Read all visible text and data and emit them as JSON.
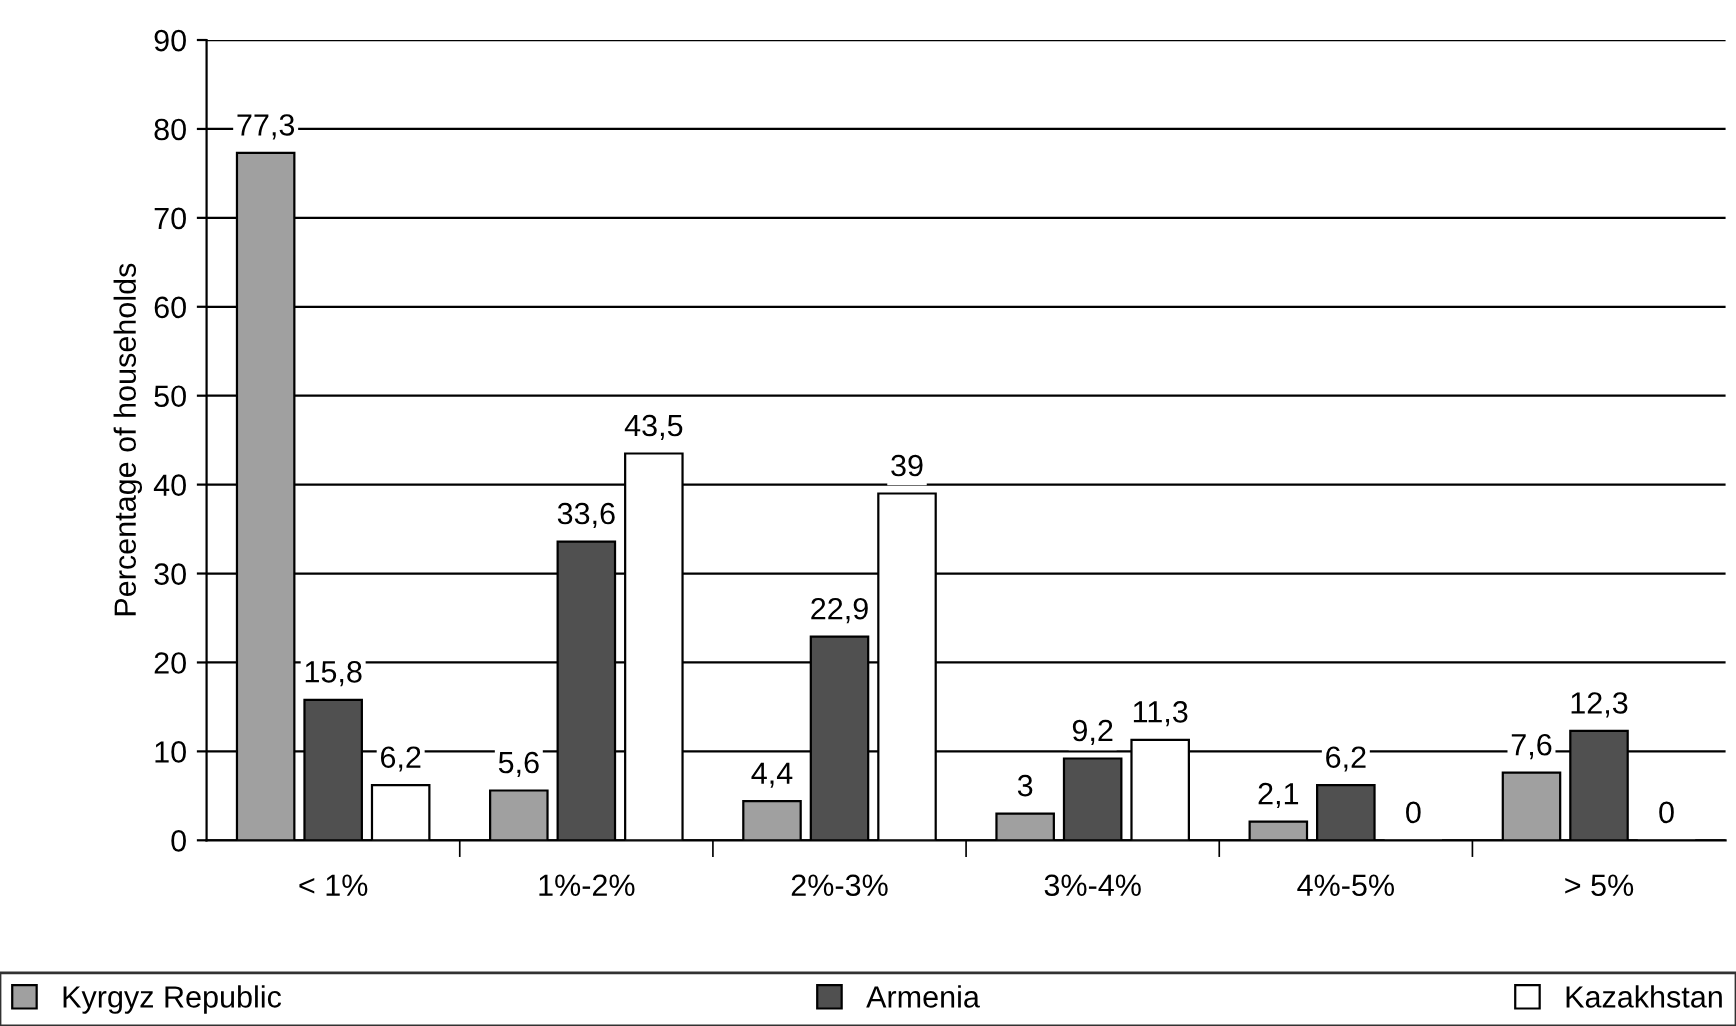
{
  "chart_data": {
    "type": "bar",
    "ylabel": "Percentage of households",
    "categories": [
      "< 1%",
      "1%-2%",
      "2%-3%",
      "3%-4%",
      "4%-5%",
      "> 5%"
    ],
    "series": [
      {
        "name": "Kyrgyz Republic",
        "color": "#a0a0a0",
        "values": [
          77.3,
          5.6,
          4.4,
          3,
          2.1,
          7.6
        ],
        "value_labels": [
          "77,3",
          "5,6",
          "4,4",
          "3",
          "2,1",
          "7,6"
        ]
      },
      {
        "name": "Armenia",
        "color": "#505050",
        "values": [
          15.8,
          33.6,
          22.9,
          9.2,
          6.2,
          12.3
        ],
        "value_labels": [
          "15,8",
          "33,6",
          "22,9",
          "9,2",
          "6,2",
          "12,3"
        ]
      },
      {
        "name": "Kazakhstan",
        "color": "#ffffff",
        "values": [
          6.2,
          43.5,
          39,
          11.3,
          0,
          0
        ],
        "value_labels": [
          "6,2",
          "43,5",
          "39",
          "11,3",
          "0",
          "0"
        ]
      }
    ],
    "ylim": [
      0,
      90
    ],
    "yticks": [
      0,
      10,
      20,
      30,
      40,
      50,
      60,
      70,
      80,
      90
    ],
    "grid": "y",
    "legend": "bottom"
  }
}
